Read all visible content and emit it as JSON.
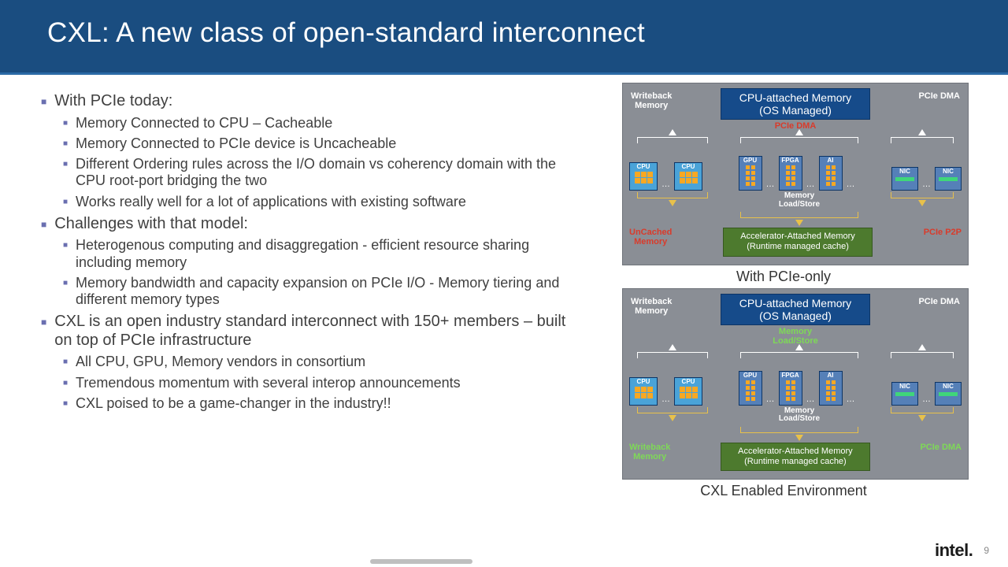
{
  "colors": {
    "header_bg": "#1a4d80",
    "bullet_marker": "#6a6fb0",
    "diagram_bg": "#8a8e95",
    "os_banner_bg": "#164b8a",
    "accel_box_bg": "#4d7a2e",
    "chip_cpu_bg": "#4aa3d8",
    "chip_acc_bg": "#5580b8",
    "core_yellow": "#f7a823",
    "label_red": "#d93b2b",
    "label_green": "#7ed957"
  },
  "title": "CXL: A new class of open-standard interconnect",
  "bullets": [
    {
      "level": 1,
      "text": "With PCIe today:"
    },
    {
      "level": 2,
      "text": "Memory Connected to CPU – Cacheable"
    },
    {
      "level": 2,
      "text": "Memory Connected to PCIe device is Uncacheable"
    },
    {
      "level": 2,
      "text": "Different Ordering rules across the I/O domain vs coherency domain with the CPU root-port bridging the two"
    },
    {
      "level": 2,
      "text": "Works really well for a lot of applications with existing software"
    },
    {
      "level": 1,
      "text": "Challenges with that model:"
    },
    {
      "level": 2,
      "text": "Heterogenous computing and disaggregation - efficient resource sharing including memory"
    },
    {
      "level": 2,
      "text": "Memory bandwidth and capacity expansion on PCIe I/O - Memory tiering and different memory types"
    },
    {
      "level": 1,
      "text": "CXL is an open industry standard interconnect with 150+ members – built on top of PCIe infrastructure"
    },
    {
      "level": 2,
      "text": "All CPU, GPU, Memory vendors in consortium"
    },
    {
      "level": 2,
      "text": "Tremendous momentum with several interop announcements"
    },
    {
      "level": 2,
      "text": "CXL poised to be a game-changer in the industry!!"
    }
  ],
  "diagrams": {
    "shared": {
      "os_banner_line1": "CPU-attached Memory",
      "os_banner_line2": "(OS Managed)",
      "top_left_label": "Writeback",
      "top_left_label2": "Memory",
      "top_right_label": "PCIe DMA",
      "accel_box_line1": "Accelerator-Attached Memory",
      "accel_box_line2": "(Runtime managed cache)",
      "mls_line1": "Memory",
      "mls_line2": "Load/Store",
      "chips": {
        "cpu": "CPU",
        "gpu": "GPU",
        "fpga": "FPGA",
        "ai": "AI",
        "nic": "NIC"
      }
    },
    "pcie": {
      "mid_label": "PCIe DMA",
      "mid_color": "red",
      "bottom_left": "UnCached",
      "bottom_left2": "Memory",
      "bottom_left_color": "red",
      "bottom_right": "PCIe P2P",
      "bottom_right_color": "red",
      "caption": "With PCIe-only"
    },
    "cxl": {
      "mid_label": "Memory",
      "mid_label2": "Load/Store",
      "mid_color": "green",
      "bottom_left": "Writeback",
      "bottom_left2": "Memory",
      "bottom_left_color": "green",
      "bottom_right": "PCIe DMA",
      "bottom_right_color": "green",
      "caption": "CXL Enabled Environment"
    }
  },
  "footer": {
    "logo": "intel.",
    "page": "9"
  }
}
